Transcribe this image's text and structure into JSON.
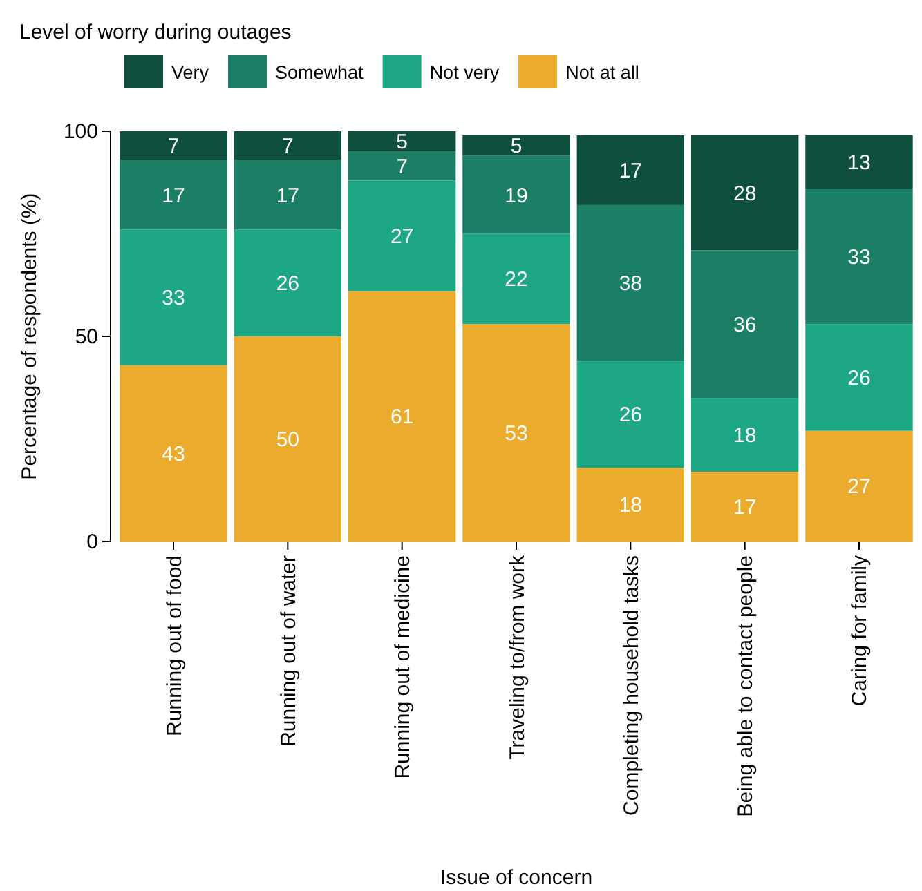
{
  "chart_data": {
    "type": "bar",
    "stacked": true,
    "data_labels": true,
    "legend": "top left",
    "legend_title": "Level of worry during outages",
    "xlabel": "Issue of concern",
    "ylabel": "Percentage of respondents (%)",
    "ylim": [
      0,
      100
    ],
    "yticks": [
      0,
      50,
      100
    ],
    "categories": [
      "Running out of food",
      "Running out of water",
      "Running out of medicine",
      "Traveling to/from work",
      "Completing household tasks",
      "Being able to contact people",
      "Caring for family"
    ],
    "series": [
      {
        "name": "Not at all",
        "color": "#ebab2d",
        "values": [
          43,
          50,
          61,
          53,
          18,
          17,
          27
        ]
      },
      {
        "name": "Not very",
        "color": "#1ea785",
        "values": [
          33,
          26,
          27,
          22,
          26,
          18,
          26
        ]
      },
      {
        "name": "Somewhat",
        "color": "#1a7f64",
        "values": [
          17,
          17,
          7,
          19,
          38,
          36,
          33
        ]
      },
      {
        "name": "Very",
        "color": "#0f4f3e",
        "values": [
          7,
          7,
          5,
          5,
          17,
          28,
          13
        ]
      }
    ]
  }
}
